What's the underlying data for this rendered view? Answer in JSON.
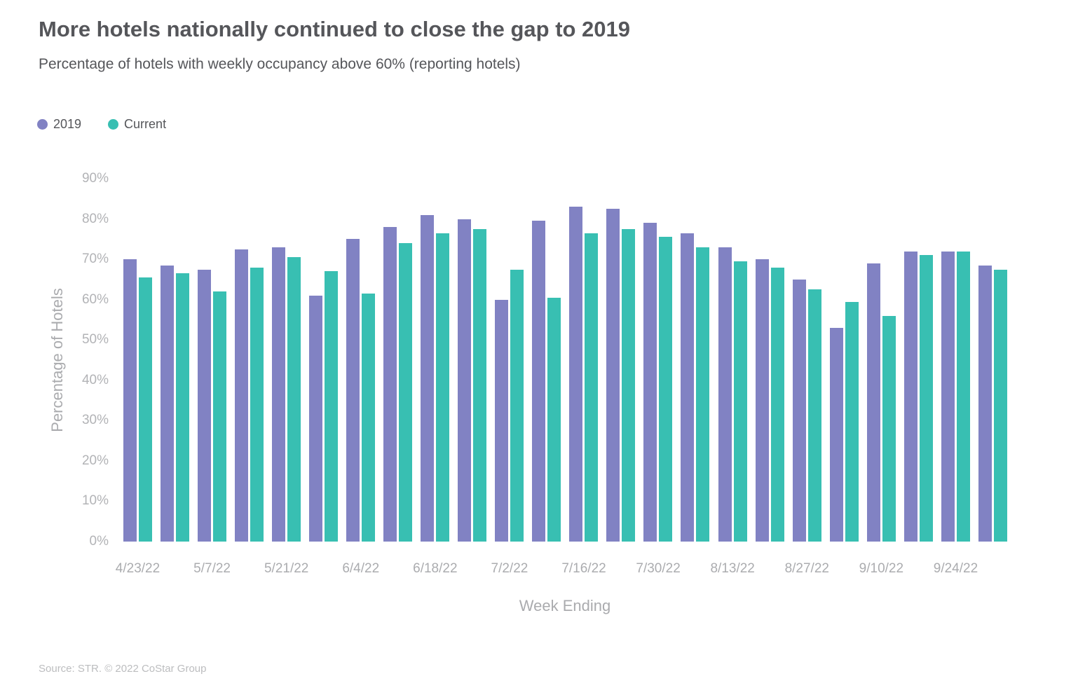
{
  "title": "More hotels nationally continued to close the gap to 2019",
  "subtitle": "Percentage of hotels with weekly occupancy above 60% (reporting hotels)",
  "source": "Source: STR. © 2022 CoStar Group",
  "colors": {
    "series_2019": "#8182C3",
    "series_current": "#38BFB2",
    "title_text": "#55565A",
    "tick_text": "#B0B1B4",
    "axis_title_text": "#AAABAE",
    "source_text": "#BCBDBF"
  },
  "legend": {
    "items": [
      {
        "label": "2019",
        "color": "#8182C3"
      },
      {
        "label": "Current",
        "color": "#38BFB2"
      }
    ]
  },
  "chart_data": {
    "type": "bar",
    "title": "More hotels nationally continued to close the gap to 2019",
    "subtitle": "Percentage of hotels with weekly occupancy above 60% (reporting hotels)",
    "xlabel": "Week Ending",
    "ylabel": "Percentage of Hotels",
    "ylim": [
      0,
      90
    ],
    "y_tick_labels": [
      "0%",
      "10%",
      "20%",
      "30%",
      "40%",
      "50%",
      "60%",
      "70%",
      "80%",
      "90%"
    ],
    "grid": false,
    "legend_position": "top-left",
    "x_tick_labels": [
      "4/23/22",
      "5/7/22",
      "5/21/22",
      "6/4/22",
      "6/18/22",
      "7/2/22",
      "7/16/22",
      "7/30/22",
      "8/13/22",
      "8/27/22",
      "9/10/22",
      "9/24/22"
    ],
    "categories": [
      "4/23/22",
      "",
      "5/7/22",
      "",
      "5/21/22",
      "",
      "6/4/22",
      "",
      "6/18/22",
      "",
      "7/2/22",
      "",
      "7/16/22",
      "",
      "7/30/22",
      "",
      "8/13/22",
      "",
      "8/27/22",
      "",
      "9/10/22",
      "",
      "9/24/22",
      ""
    ],
    "series": [
      {
        "name": "2019",
        "color": "#8182C3",
        "values": [
          70,
          68.5,
          67.5,
          72.5,
          73,
          61,
          75,
          78,
          81,
          80,
          60,
          79.5,
          83,
          82.5,
          79,
          76.5,
          73,
          70,
          65,
          53,
          69,
          72,
          72,
          68.5
        ]
      },
      {
        "name": "Current",
        "color": "#38BFB2",
        "values": [
          65.5,
          66.5,
          62,
          68,
          70.5,
          67,
          61.5,
          74,
          76.5,
          77.5,
          67.5,
          60.5,
          76.5,
          77.5,
          75.5,
          73,
          69.5,
          68,
          62.5,
          59.5,
          56,
          71,
          72,
          67.5
        ]
      }
    ]
  }
}
